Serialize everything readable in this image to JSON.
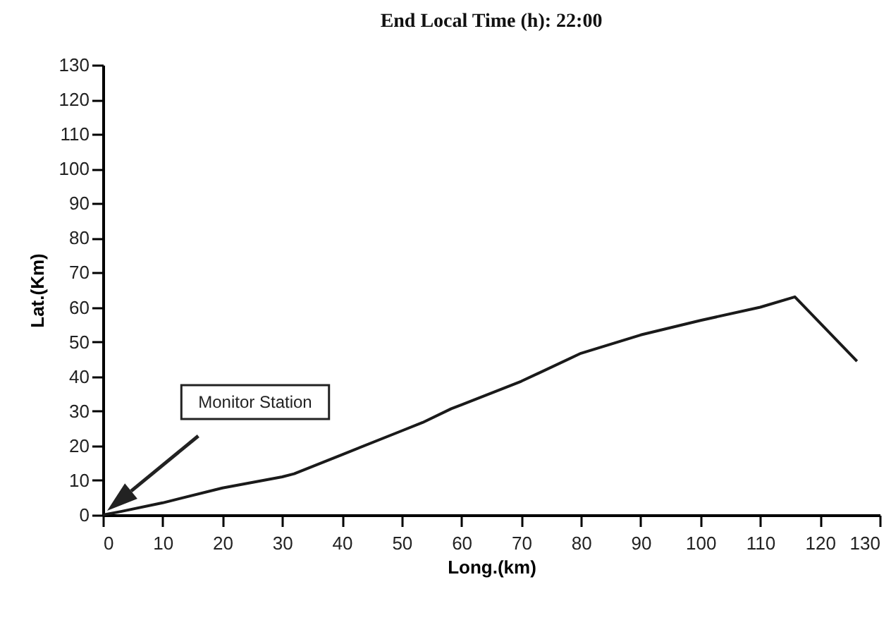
{
  "chart_data": {
    "type": "line",
    "title": "End Local Time (h): 22:00",
    "xlabel": "Long.(km)",
    "ylabel": "Lat.(Km)",
    "x": [
      0,
      3,
      10,
      20,
      30,
      32,
      40,
      50,
      53.5,
      58.3,
      60,
      70,
      80,
      90,
      100,
      110,
      115.8,
      126.2
    ],
    "series": [
      {
        "color": "#1a1a1a",
        "values": [
          0,
          1,
          3.5,
          7.8,
          11,
          11.9,
          17.4,
          24.3,
          26.7,
          30.7,
          31.8,
          38.6,
          46.7,
          52,
          56.2,
          60,
          63,
          44.4
        ]
      }
    ],
    "xlim": [
      0,
      130
    ],
    "ylim": [
      0,
      130
    ],
    "xticks": [
      0,
      10,
      20,
      30,
      40,
      50,
      60,
      70,
      80,
      90,
      100,
      110,
      120,
      130
    ],
    "yticks": [
      0,
      10,
      20,
      30,
      40,
      50,
      60,
      70,
      80,
      90,
      100,
      110,
      120,
      130
    ],
    "grid": false,
    "marker": "none",
    "line_style": "solid",
    "legend": false,
    "annotations": [
      "Monitor Station"
    ]
  }
}
